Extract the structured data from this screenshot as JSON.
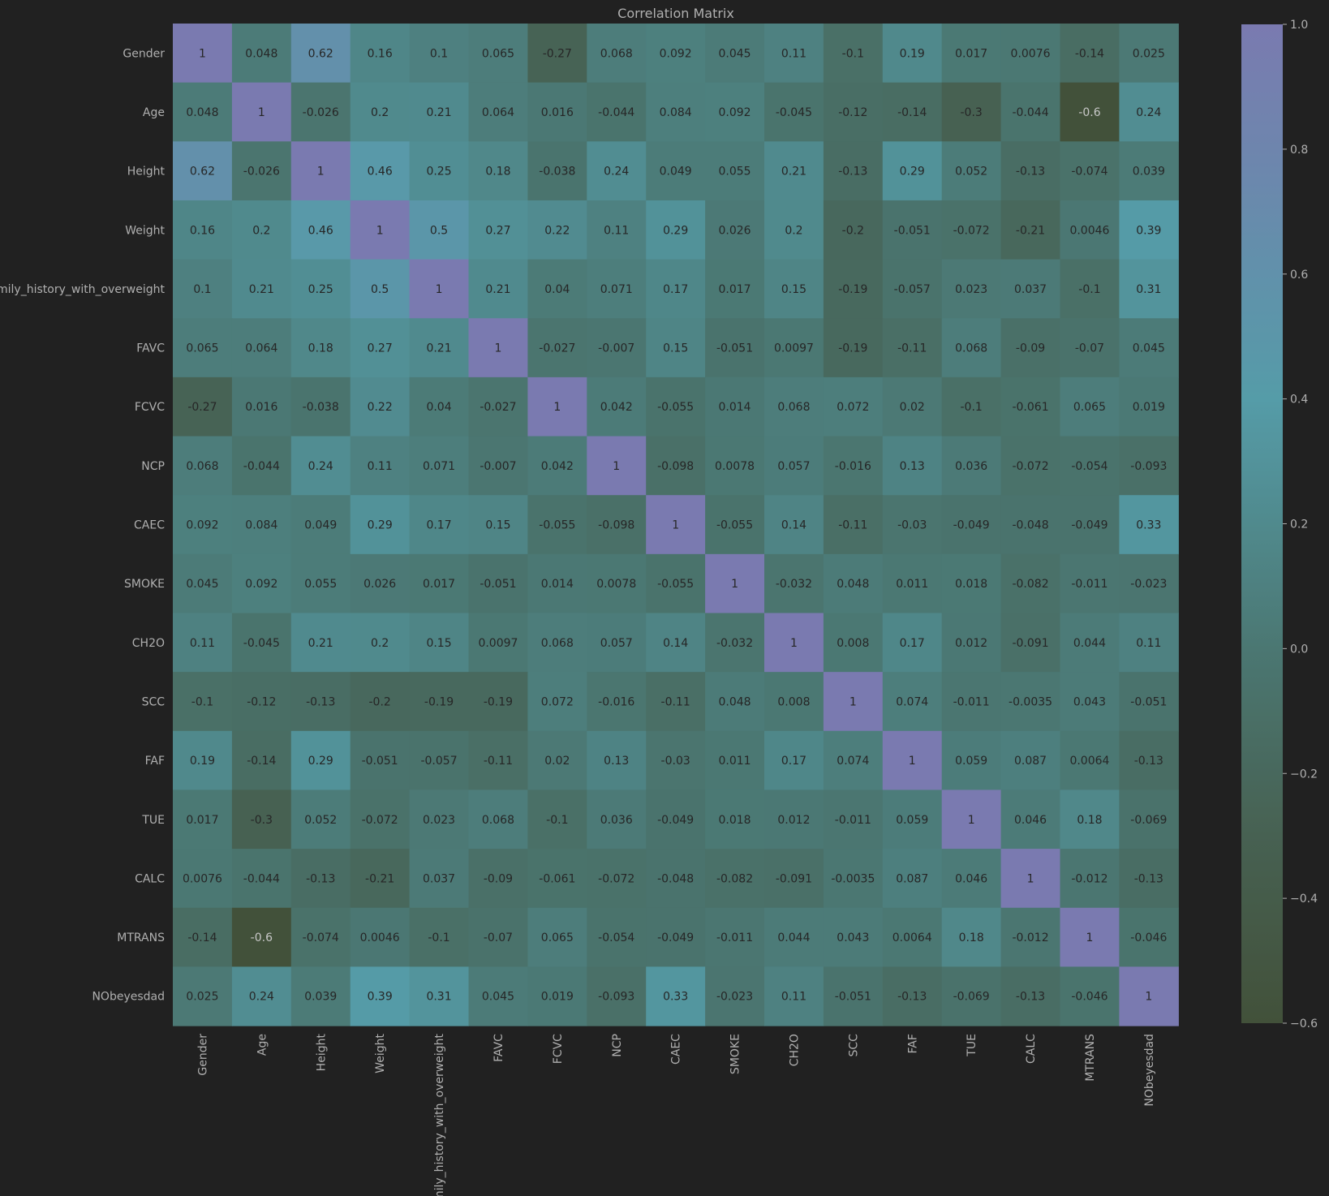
{
  "chart_data": {
    "type": "heatmap",
    "title": "Correlation Matrix",
    "labels": [
      "Gender",
      "Age",
      "Height",
      "Weight",
      "family_history_with_overweight",
      "FAVC",
      "FCVC",
      "NCP",
      "CAEC",
      "SMOKE",
      "CH2O",
      "SCC",
      "FAF",
      "TUE",
      "CALC",
      "MTRANS",
      "NObeyesdad"
    ],
    "values": [
      [
        1,
        0.048,
        0.62,
        0.16,
        0.1,
        0.065,
        -0.27,
        0.068,
        0.092,
        0.045,
        0.11,
        -0.1,
        0.19,
        0.017,
        0.0076,
        -0.14,
        0.025
      ],
      [
        0.048,
        1,
        -0.026,
        0.2,
        0.21,
        0.064,
        0.016,
        -0.044,
        0.084,
        0.092,
        -0.045,
        -0.12,
        -0.14,
        -0.3,
        -0.044,
        -0.6,
        0.24
      ],
      [
        0.62,
        -0.026,
        1,
        0.46,
        0.25,
        0.18,
        -0.038,
        0.24,
        0.049,
        0.055,
        0.21,
        -0.13,
        0.29,
        0.052,
        -0.13,
        -0.074,
        0.039
      ],
      [
        0.16,
        0.2,
        0.46,
        1,
        0.5,
        0.27,
        0.22,
        0.11,
        0.29,
        0.026,
        0.2,
        -0.2,
        -0.051,
        -0.072,
        -0.21,
        0.0046,
        0.39
      ],
      [
        0.1,
        0.21,
        0.25,
        0.5,
        1,
        0.21,
        0.04,
        0.071,
        0.17,
        0.017,
        0.15,
        -0.19,
        -0.057,
        0.023,
        0.037,
        -0.1,
        0.31
      ],
      [
        0.065,
        0.064,
        0.18,
        0.27,
        0.21,
        1,
        -0.027,
        -0.007,
        0.15,
        -0.051,
        0.0097,
        -0.19,
        -0.11,
        0.068,
        -0.09,
        -0.07,
        0.045
      ],
      [
        -0.27,
        0.016,
        -0.038,
        0.22,
        0.04,
        -0.027,
        1,
        0.042,
        -0.055,
        0.014,
        0.068,
        0.072,
        0.02,
        -0.1,
        -0.061,
        0.065,
        0.019
      ],
      [
        0.068,
        -0.044,
        0.24,
        0.11,
        0.071,
        -0.007,
        0.042,
        1,
        -0.098,
        0.0078,
        0.057,
        -0.016,
        0.13,
        0.036,
        -0.072,
        -0.054,
        -0.093
      ],
      [
        0.092,
        0.084,
        0.049,
        0.29,
        0.17,
        0.15,
        -0.055,
        -0.098,
        1,
        -0.055,
        0.14,
        -0.11,
        -0.03,
        -0.049,
        -0.048,
        -0.049,
        0.33
      ],
      [
        0.045,
        0.092,
        0.055,
        0.026,
        0.017,
        -0.051,
        0.014,
        0.0078,
        -0.055,
        1,
        -0.032,
        0.048,
        0.011,
        0.018,
        -0.082,
        -0.011,
        -0.023
      ],
      [
        0.11,
        -0.045,
        0.21,
        0.2,
        0.15,
        0.0097,
        0.068,
        0.057,
        0.14,
        -0.032,
        1,
        0.008,
        0.17,
        0.012,
        -0.091,
        0.044,
        0.11
      ],
      [
        -0.1,
        -0.12,
        -0.13,
        -0.2,
        -0.19,
        -0.19,
        0.072,
        -0.016,
        -0.11,
        0.048,
        0.008,
        1,
        0.074,
        -0.011,
        -0.0035,
        0.043,
        -0.051
      ],
      [
        0.19,
        -0.14,
        0.29,
        -0.051,
        -0.057,
        -0.11,
        0.02,
        0.13,
        -0.03,
        0.011,
        0.17,
        0.074,
        1,
        0.059,
        0.087,
        0.0064,
        -0.13
      ],
      [
        0.017,
        -0.3,
        0.052,
        -0.072,
        0.023,
        0.068,
        -0.1,
        0.036,
        -0.049,
        0.018,
        0.012,
        -0.011,
        0.059,
        1,
        0.046,
        0.18,
        -0.069
      ],
      [
        0.0076,
        -0.044,
        -0.13,
        -0.21,
        0.037,
        -0.09,
        -0.061,
        -0.072,
        -0.048,
        -0.082,
        -0.091,
        -0.0035,
        0.087,
        0.046,
        1,
        -0.012,
        -0.13
      ],
      [
        -0.14,
        -0.6,
        -0.074,
        0.0046,
        -0.1,
        -0.07,
        0.065,
        -0.054,
        -0.049,
        -0.011,
        0.044,
        0.043,
        0.0064,
        0.18,
        -0.012,
        1,
        -0.046
      ],
      [
        0.025,
        0.24,
        0.039,
        0.39,
        0.31,
        0.045,
        0.019,
        -0.093,
        0.33,
        -0.023,
        0.11,
        -0.051,
        -0.13,
        -0.069,
        -0.13,
        -0.046,
        1
      ]
    ],
    "value_range": [
      -0.6,
      1.0
    ],
    "colorbar": {
      "ticks": [
        -0.6,
        -0.4,
        -0.2,
        0.0,
        0.2,
        0.4,
        0.6,
        0.8,
        1.0
      ],
      "tick_labels": [
        "−0.6",
        "−0.4",
        "−0.2",
        "0.0",
        "0.2",
        "0.4",
        "0.6",
        "0.8",
        "1.0"
      ]
    },
    "colors": {
      "background": "#212121",
      "text": "#b0b0b0",
      "low": "#42513a",
      "mid_low": "#476152",
      "zero": "#4b7772",
      "mid_high": "#559ca8",
      "high": "#7a7ab0"
    }
  }
}
